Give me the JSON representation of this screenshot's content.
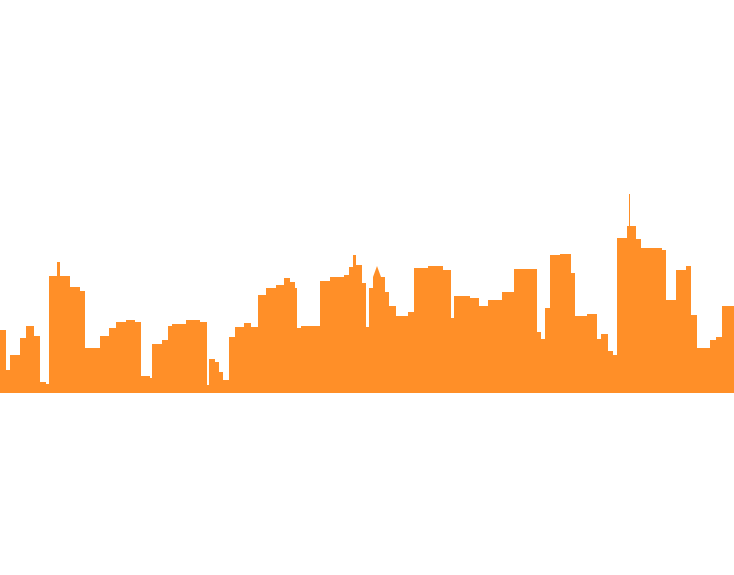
{
  "image": {
    "subject": "city-skyline-silhouette",
    "background_color": "#ffffff",
    "silhouette_color": "#FF8F28"
  }
}
